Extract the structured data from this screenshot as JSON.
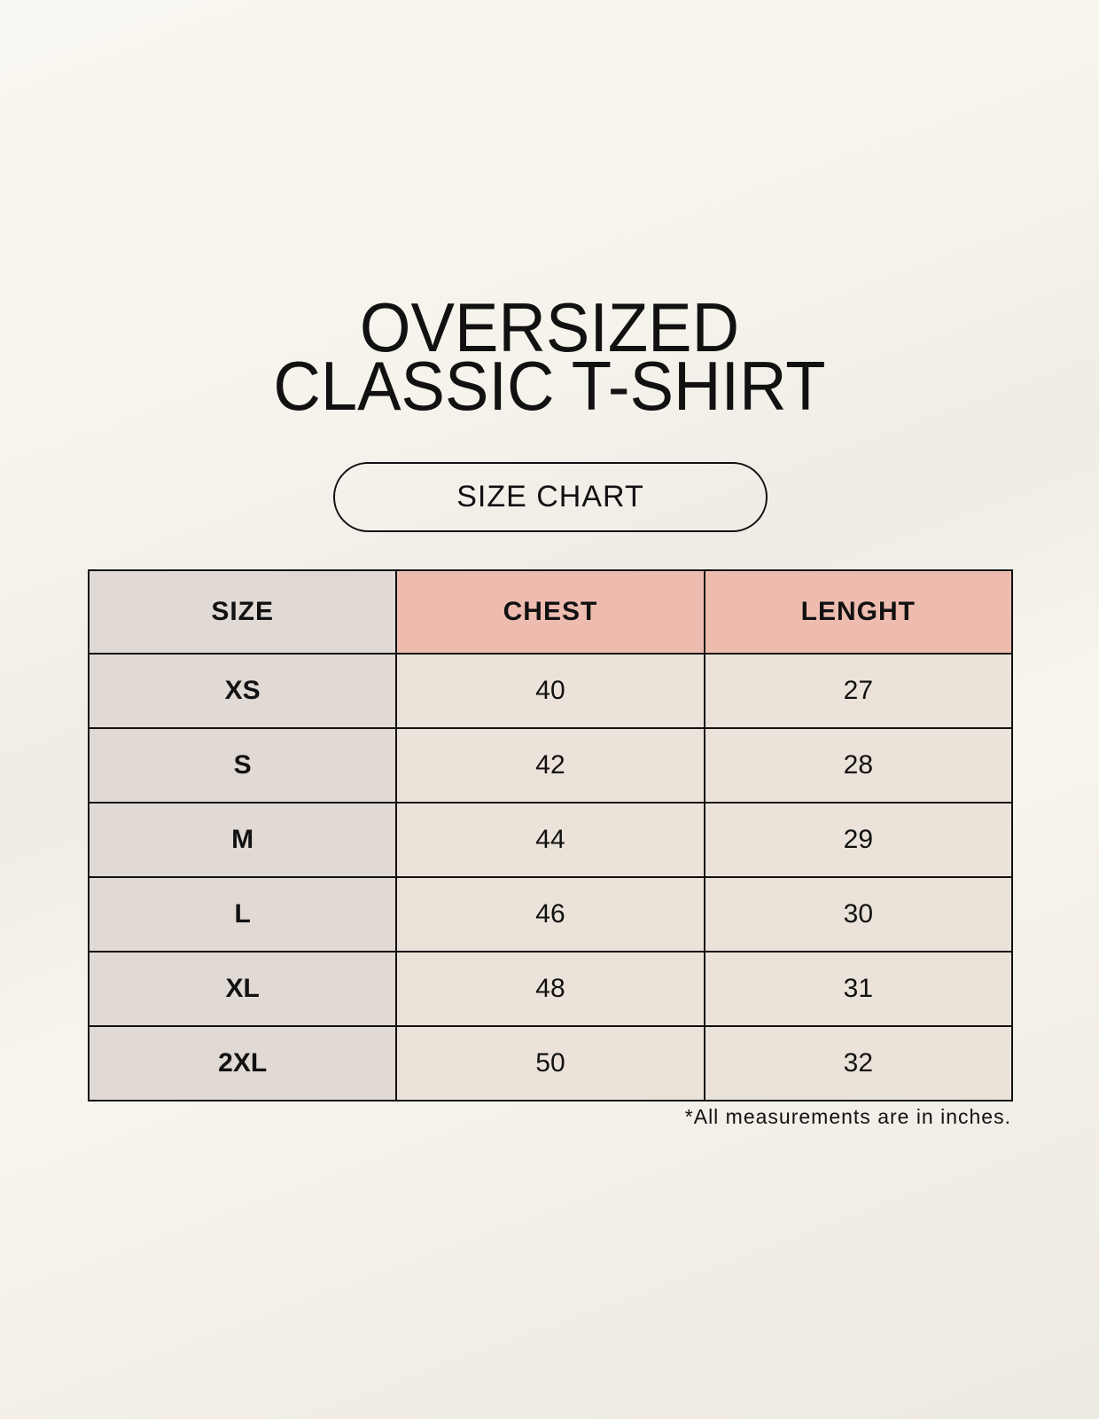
{
  "title": {
    "line1": "OVERSIZED",
    "line2": "CLASSIC T-SHIRT"
  },
  "subtitle": "SIZE CHART",
  "table": {
    "headers": [
      "SIZE",
      "CHEST",
      "LENGHT"
    ],
    "rows": [
      [
        "XS",
        "40",
        "27"
      ],
      [
        "S",
        "42",
        "28"
      ],
      [
        "M",
        "44",
        "29"
      ],
      [
        "L",
        "46",
        "30"
      ],
      [
        "XL",
        "48",
        "31"
      ],
      [
        "2XL",
        "50",
        "32"
      ]
    ]
  },
  "footnote": "*All measurements are in inches.",
  "colors": {
    "size_column": "#e0d9d4",
    "header_accent": "#edbcaf",
    "cell": "#ebe3d9",
    "background": "#f8f6f0"
  }
}
